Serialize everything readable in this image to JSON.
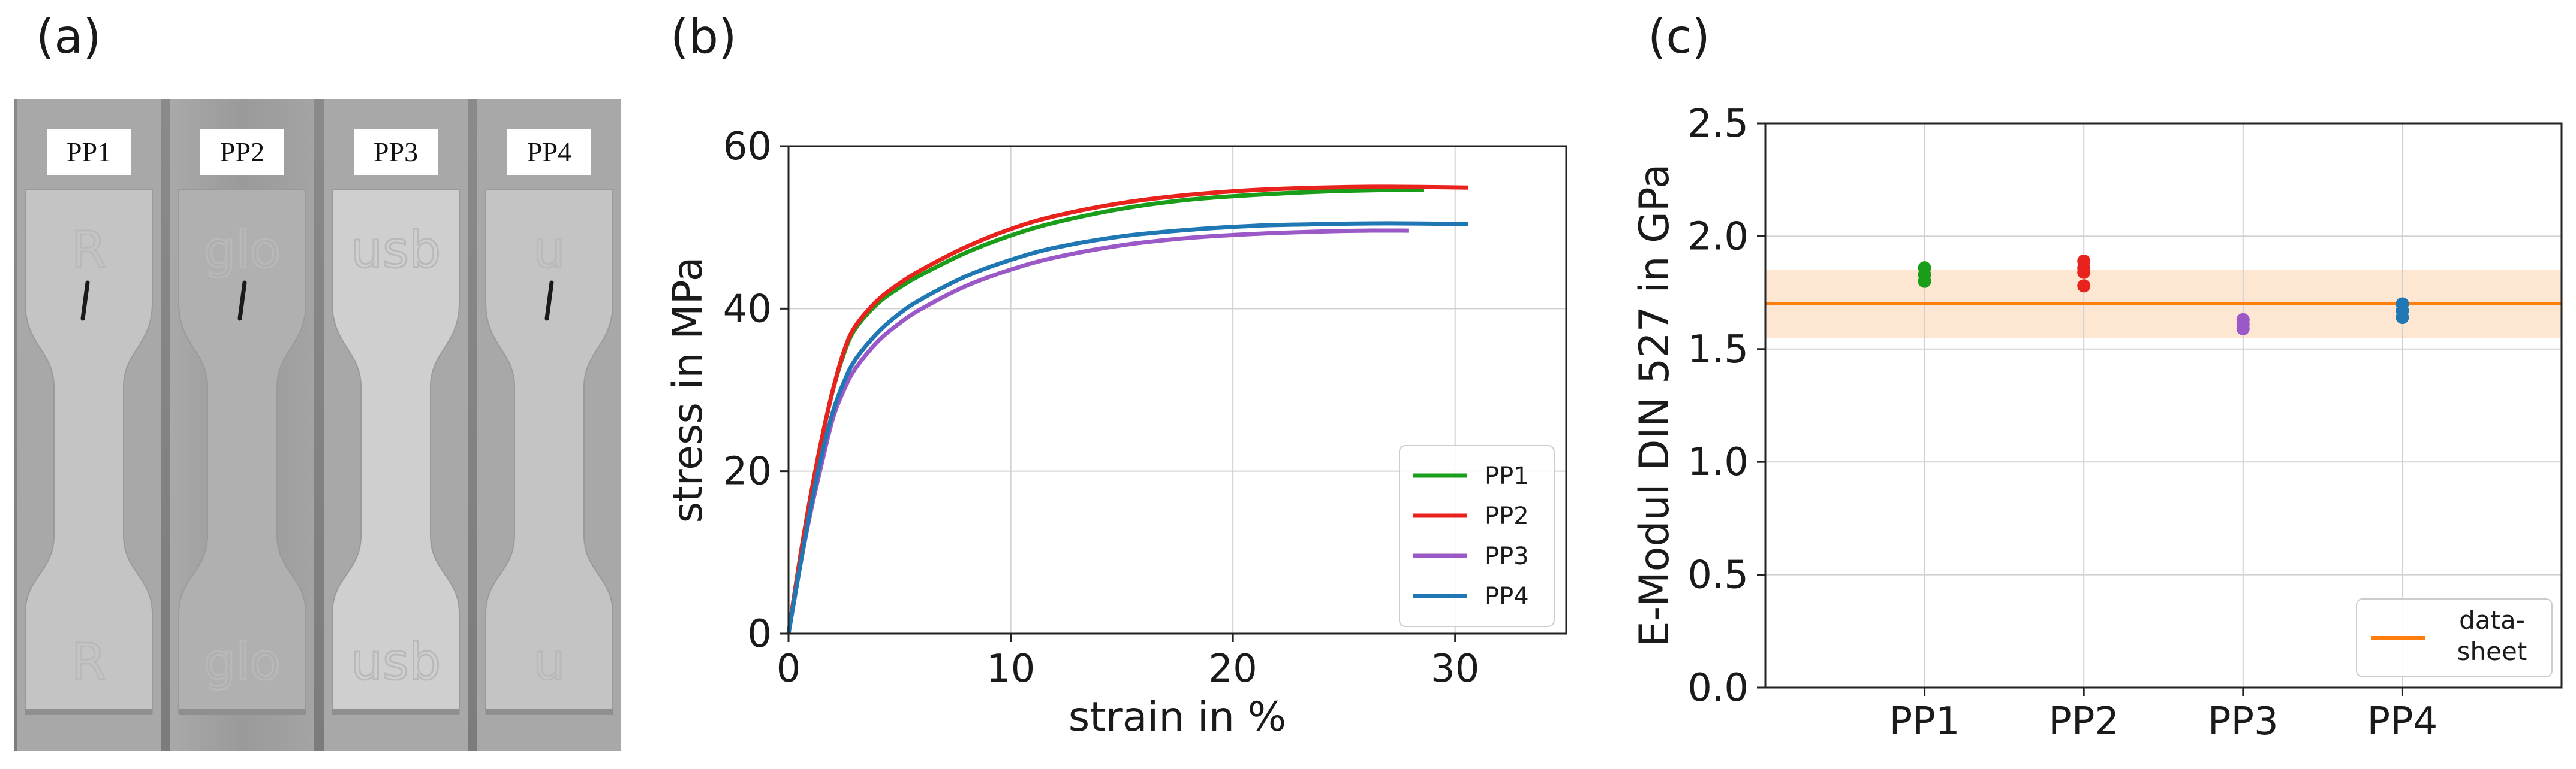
{
  "panels": {
    "a": {
      "label": "(a)"
    },
    "b": {
      "label": "(b)"
    },
    "c": {
      "label": "(c)"
    }
  },
  "specimens": [
    {
      "tag": "PP1",
      "mark": "R"
    },
    {
      "tag": "PP2",
      "mark": "glo"
    },
    {
      "tag": "PP3",
      "mark": "usb"
    },
    {
      "tag": "PP4",
      "mark": "u"
    }
  ],
  "chart_data": [
    {
      "type": "line",
      "panel": "b",
      "xlabel": "strain in %",
      "ylabel": "stress in MPa",
      "xlim": [
        0,
        35
      ],
      "ylim": [
        0,
        60
      ],
      "xticks": [
        0,
        10,
        20,
        30
      ],
      "yticks": [
        0,
        20,
        40,
        60
      ],
      "grid": true,
      "legend_position": "bottom-right",
      "series": [
        {
          "name": "PP1",
          "color": "#1a9e1a",
          "x": [
            0,
            0.5,
            1,
            1.5,
            2,
            2.5,
            3,
            4,
            5,
            6,
            8,
            10,
            12,
            15,
            18,
            21,
            24,
            27,
            28.6
          ],
          "y": [
            0,
            9,
            17,
            24,
            30,
            34.5,
            37.5,
            40.6,
            42.6,
            44.2,
            46.9,
            49,
            50.6,
            52.3,
            53.4,
            54,
            54.4,
            54.6,
            54.6
          ]
        },
        {
          "name": "PP2",
          "color": "#e8221d",
          "x": [
            0,
            0.5,
            1,
            1.5,
            2,
            2.5,
            3,
            4,
            5,
            6,
            8,
            10,
            12,
            15,
            18,
            21,
            24,
            27,
            30.6
          ],
          "y": [
            0,
            9,
            17,
            24,
            30,
            34.8,
            37.8,
            41,
            43.1,
            44.8,
            47.6,
            49.8,
            51.4,
            53,
            54,
            54.6,
            54.9,
            55,
            54.9
          ]
        },
        {
          "name": "PP3",
          "color": "#9b59c8",
          "x": [
            0,
            0.5,
            1,
            1.5,
            2,
            2.5,
            3,
            4,
            5,
            6,
            8,
            10,
            12,
            15,
            18,
            21,
            24,
            26,
            27.9
          ],
          "y": [
            0,
            8,
            15,
            21,
            26.5,
            30,
            32.6,
            35.9,
            38.2,
            40,
            42.8,
            44.8,
            46.3,
            47.8,
            48.7,
            49.2,
            49.5,
            49.6,
            49.6
          ]
        },
        {
          "name": "PP4",
          "color": "#1f77b4",
          "x": [
            0,
            0.5,
            1,
            1.5,
            2,
            2.5,
            3,
            4,
            5,
            6,
            8,
            10,
            12,
            15,
            18,
            21,
            24,
            27,
            30.6
          ],
          "y": [
            0,
            8,
            15.5,
            22,
            27.3,
            31,
            33.7,
            37,
            39.4,
            41.2,
            44,
            46,
            47.5,
            48.9,
            49.7,
            50.2,
            50.4,
            50.5,
            50.4
          ]
        }
      ]
    },
    {
      "type": "scatter",
      "panel": "c",
      "xlabel": "",
      "ylabel": "E-Modul DIN 527 in GPa",
      "categories": [
        "PP1",
        "PP2",
        "PP3",
        "PP4"
      ],
      "xlim": [
        0,
        5
      ],
      "ylim": [
        0.0,
        2.5
      ],
      "yticks": [
        "0.0",
        "0.5",
        "1.0",
        "1.5",
        "2.0",
        "2.5"
      ],
      "grid": true,
      "legend_position": "bottom-right",
      "reference": {
        "name": "data-\nsheet",
        "label_line1": "data-",
        "label_line2": "sheet",
        "value": 1.7,
        "band": [
          1.55,
          1.85
        ],
        "color": "#ff7f0e",
        "band_color": "#fde6d2"
      },
      "series": [
        {
          "name": "PP1",
          "color": "#1a9e1a",
          "values": [
            1.8,
            1.83,
            1.86
          ]
        },
        {
          "name": "PP2",
          "color": "#e8221d",
          "values": [
            1.78,
            1.84,
            1.86,
            1.89
          ]
        },
        {
          "name": "PP3",
          "color": "#9b59c8",
          "values": [
            1.59,
            1.61,
            1.63
          ]
        },
        {
          "name": "PP4",
          "color": "#1f77b4",
          "values": [
            1.64,
            1.67,
            1.7
          ]
        }
      ]
    }
  ]
}
